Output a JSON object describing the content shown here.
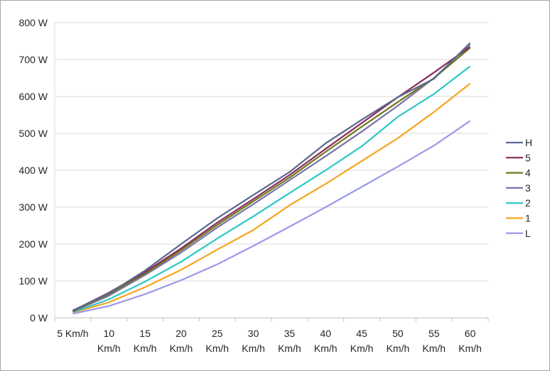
{
  "chart_data": {
    "type": "line",
    "categories": [
      "5 Km/h",
      "10 Km/h",
      "15 Km/h",
      "20 Km/h",
      "25 Km/h",
      "30 Km/h",
      "35 Km/h",
      "40 Km/h",
      "45 Km/h",
      "50 Km/h",
      "55 Km/h",
      "60 Km/h"
    ],
    "ylim": [
      0,
      800
    ],
    "yticks": [
      "0 W",
      "100 W",
      "200 W",
      "300 W",
      "400 W",
      "500 W",
      "600 W",
      "700 W",
      "800 W"
    ],
    "grid": true,
    "legend": "right",
    "series": [
      {
        "name": "H",
        "color": "#5b6a8e",
        "values": [
          20,
          66,
          128,
          200,
          270,
          333,
          395,
          473,
          537,
          598,
          648,
          745
        ]
      },
      {
        "name": "5",
        "color": "#8c2d5e",
        "values": [
          19,
          68,
          124,
          188,
          258,
          322,
          387,
          458,
          528,
          598,
          665,
          735
        ]
      },
      {
        "name": "4",
        "color": "#6e7a1a",
        "values": [
          18,
          64,
          120,
          183,
          252,
          316,
          380,
          450,
          518,
          585,
          650,
          732
        ]
      },
      {
        "name": "3",
        "color": "#7a72a8",
        "values": [
          17,
          60,
          116,
          177,
          245,
          308,
          373,
          438,
          505,
          575,
          650,
          742
        ]
      },
      {
        "name": "2",
        "color": "#2fc7c7",
        "values": [
          15,
          50,
          98,
          152,
          215,
          275,
          338,
          400,
          465,
          545,
          607,
          682
        ]
      },
      {
        "name": "1",
        "color": "#f5a623",
        "values": [
          14,
          42,
          83,
          130,
          185,
          238,
          305,
          363,
          425,
          487,
          558,
          635
        ]
      },
      {
        "name": "L",
        "color": "#9b9ae8",
        "values": [
          11,
          32,
          64,
          102,
          145,
          195,
          247,
          300,
          355,
          410,
          467,
          534
        ]
      }
    ]
  }
}
